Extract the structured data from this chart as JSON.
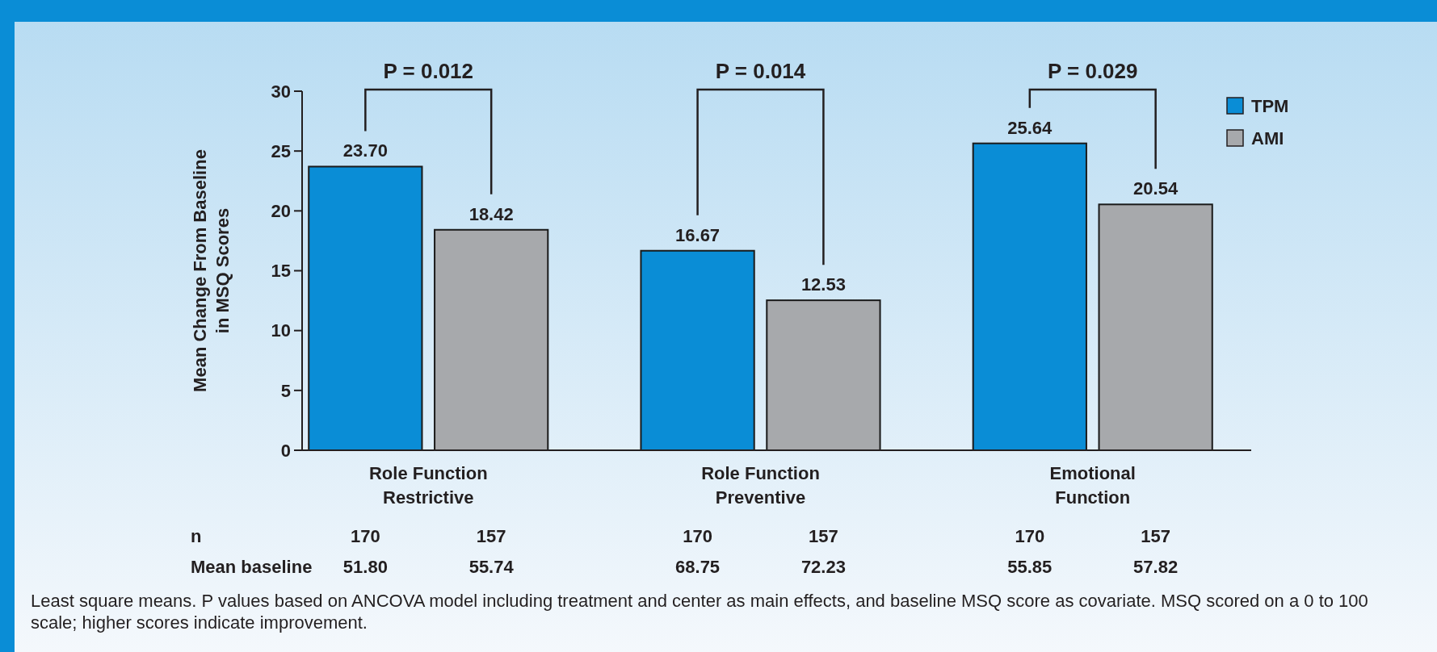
{
  "chart_data": {
    "type": "bar",
    "ylabel": "Mean Change From Baseline in MSQ Scores",
    "categories": [
      "Role Function Restrictive",
      "Role Function Preventive",
      "Emotional Function"
    ],
    "series": [
      {
        "name": "TPM",
        "color": "#0a8dd6",
        "values": [
          23.7,
          16.67,
          25.64
        ],
        "value_labels": [
          "23.70",
          "16.67",
          "25.64"
        ]
      },
      {
        "name": "AMI",
        "color": "#a7a9ac",
        "values": [
          18.42,
          12.53,
          20.54
        ],
        "value_labels": [
          "18.42",
          "12.53",
          "20.54"
        ]
      }
    ],
    "ylim": [
      0,
      30
    ],
    "yticks": [
      0,
      5,
      10,
      15,
      20,
      25,
      30
    ],
    "grid": false,
    "legend": "top right",
    "annotations": [
      "P = 0.012",
      "P = 0.014",
      "P = 0.029",
      "n",
      "170",
      "157",
      "170",
      "157",
      "170",
      "157",
      "Mean baseline",
      "51.80",
      "55.74",
      "68.75",
      "72.23",
      "55.85",
      "57.82",
      "Least square means. P values based on ANCOVA model including treatment and center as main effects, and baseline MSQ score as covariate. MSQ scored on a 0 to 100 scale; higher scores indicate improvement."
    ]
  }
}
